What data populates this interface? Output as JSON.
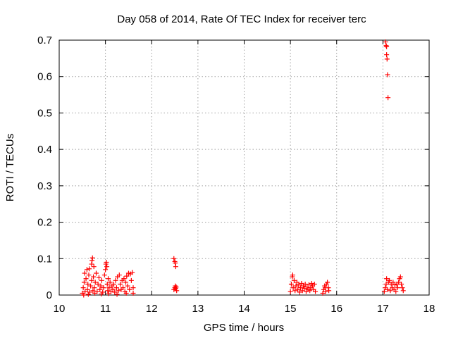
{
  "chart_data": {
    "type": "scatter",
    "title": "Day 058 of 2014, Rate Of TEC Index for receiver terc",
    "xlabel": "GPS time / hours",
    "ylabel": "ROTI / TECUs",
    "xlim": [
      10,
      18
    ],
    "ylim": [
      0,
      0.7
    ],
    "xticks": [
      "10",
      "11",
      "12",
      "13",
      "14",
      "15",
      "16",
      "17",
      "18"
    ],
    "yticks": [
      "0",
      "0.1",
      "0.2",
      "0.3",
      "0.4",
      "0.5",
      "0.6",
      "0.7"
    ],
    "grid": true,
    "marker": "+",
    "color": "#ff0000",
    "series": [
      {
        "name": "ROTI",
        "points": [
          [
            10.5,
            0.005
          ],
          [
            10.52,
            0.02
          ],
          [
            10.54,
            0.035
          ],
          [
            10.55,
            0.06
          ],
          [
            10.56,
            0.01
          ],
          [
            10.58,
            0.045
          ],
          [
            10.6,
            0.07
          ],
          [
            10.61,
            0.015
          ],
          [
            10.62,
            0.03
          ],
          [
            10.64,
            0.055
          ],
          [
            10.65,
            0.072
          ],
          [
            10.66,
            0.008
          ],
          [
            10.68,
            0.025
          ],
          [
            10.7,
            0.04
          ],
          [
            10.7,
            0.085
          ],
          [
            10.71,
            0.095
          ],
          [
            10.72,
            0.102
          ],
          [
            10.73,
            0.012
          ],
          [
            10.74,
            0.05
          ],
          [
            10.75,
            0.078
          ],
          [
            10.76,
            0.02
          ],
          [
            10.78,
            0.035
          ],
          [
            10.8,
            0.06
          ],
          [
            10.82,
            0.01
          ],
          [
            10.84,
            0.03
          ],
          [
            10.86,
            0.048
          ],
          [
            10.88,
            0.015
          ],
          [
            10.9,
            0.025
          ],
          [
            10.92,
            0.04
          ],
          [
            10.94,
            0.008
          ],
          [
            10.96,
            0.02
          ],
          [
            10.98,
            0.055
          ],
          [
            11.0,
            0.07
          ],
          [
            11.01,
            0.085
          ],
          [
            11.02,
            0.09
          ],
          [
            11.03,
            0.078
          ],
          [
            11.04,
            0.03
          ],
          [
            11.05,
            0.012
          ],
          [
            11.06,
            0.045
          ],
          [
            11.08,
            0.02
          ],
          [
            11.1,
            0.035
          ],
          [
            11.12,
            0.01
          ],
          [
            11.14,
            0.025
          ],
          [
            11.16,
            0.015
          ],
          [
            11.18,
            0.03
          ],
          [
            11.2,
            0.008
          ],
          [
            11.22,
            0.04
          ],
          [
            11.24,
            0.02
          ],
          [
            11.26,
            0.05
          ],
          [
            11.28,
            0.012
          ],
          [
            11.3,
            0.055
          ],
          [
            11.32,
            0.03
          ],
          [
            11.34,
            0.015
          ],
          [
            11.36,
            0.04
          ],
          [
            11.38,
            0.02
          ],
          [
            11.4,
            0.045
          ],
          [
            11.42,
            0.01
          ],
          [
            11.44,
            0.035
          ],
          [
            11.46,
            0.052
          ],
          [
            11.48,
            0.025
          ],
          [
            11.5,
            0.06
          ],
          [
            11.52,
            0.015
          ],
          [
            11.54,
            0.058
          ],
          [
            11.56,
            0.04
          ],
          [
            11.58,
            0.062
          ],
          [
            11.6,
            0.02
          ],
          [
            11.6,
            0.005
          ],
          [
            10.53,
            0.0
          ],
          [
            10.63,
            0.002
          ],
          [
            10.77,
            0.005
          ],
          [
            10.91,
            0.003
          ],
          [
            11.07,
            0.004
          ],
          [
            11.25,
            0.002
          ],
          [
            11.45,
            0.005
          ],
          [
            12.48,
            0.015
          ],
          [
            12.5,
            0.02
          ],
          [
            12.51,
            0.025
          ],
          [
            12.52,
            0.018
          ],
          [
            12.53,
            0.022
          ],
          [
            12.54,
            0.012
          ],
          [
            12.48,
            0.1
          ],
          [
            12.5,
            0.092
          ],
          [
            12.52,
            0.078
          ],
          [
            12.51,
            0.088
          ],
          [
            15.0,
            0.01
          ],
          [
            15.02,
            0.03
          ],
          [
            15.04,
            0.05
          ],
          [
            15.05,
            0.055
          ],
          [
            15.06,
            0.02
          ],
          [
            15.08,
            0.04
          ],
          [
            15.1,
            0.012
          ],
          [
            15.12,
            0.025
          ],
          [
            15.14,
            0.035
          ],
          [
            15.16,
            0.015
          ],
          [
            15.18,
            0.028
          ],
          [
            15.2,
            0.008
          ],
          [
            15.22,
            0.02
          ],
          [
            15.24,
            0.032
          ],
          [
            15.26,
            0.012
          ],
          [
            15.28,
            0.025
          ],
          [
            15.3,
            0.018
          ],
          [
            15.32,
            0.03
          ],
          [
            15.34,
            0.01
          ],
          [
            15.36,
            0.022
          ],
          [
            15.38,
            0.015
          ],
          [
            15.4,
            0.028
          ],
          [
            15.42,
            0.012
          ],
          [
            15.44,
            0.02
          ],
          [
            15.46,
            0.032
          ],
          [
            15.48,
            0.025
          ],
          [
            15.5,
            0.015
          ],
          [
            15.52,
            0.03
          ],
          [
            15.54,
            0.01
          ],
          [
            15.7,
            0.005
          ],
          [
            15.72,
            0.015
          ],
          [
            15.74,
            0.025
          ],
          [
            15.75,
            0.02
          ],
          [
            15.76,
            0.01
          ],
          [
            15.78,
            0.03
          ],
          [
            15.8,
            0.035
          ],
          [
            15.82,
            0.02
          ],
          [
            15.83,
            0.012
          ],
          [
            17.03,
            0.01
          ],
          [
            17.05,
            0.02
          ],
          [
            17.07,
            0.03
          ],
          [
            17.08,
            0.045
          ],
          [
            17.1,
            0.015
          ],
          [
            17.12,
            0.035
          ],
          [
            17.14,
            0.04
          ],
          [
            17.16,
            0.012
          ],
          [
            17.18,
            0.03
          ],
          [
            17.2,
            0.02
          ],
          [
            17.22,
            0.035
          ],
          [
            17.24,
            0.015
          ],
          [
            17.26,
            0.028
          ],
          [
            17.28,
            0.01
          ],
          [
            17.3,
            0.03
          ],
          [
            17.32,
            0.02
          ],
          [
            17.34,
            0.035
          ],
          [
            17.36,
            0.045
          ],
          [
            17.38,
            0.05
          ],
          [
            17.4,
            0.03
          ],
          [
            17.42,
            0.02
          ],
          [
            17.44,
            0.012
          ],
          [
            17.06,
            0.695
          ],
          [
            17.07,
            0.685
          ],
          [
            17.08,
            0.682
          ],
          [
            17.08,
            0.66
          ],
          [
            17.09,
            0.648
          ],
          [
            17.1,
            0.605
          ],
          [
            17.11,
            0.542
          ]
        ]
      }
    ]
  }
}
